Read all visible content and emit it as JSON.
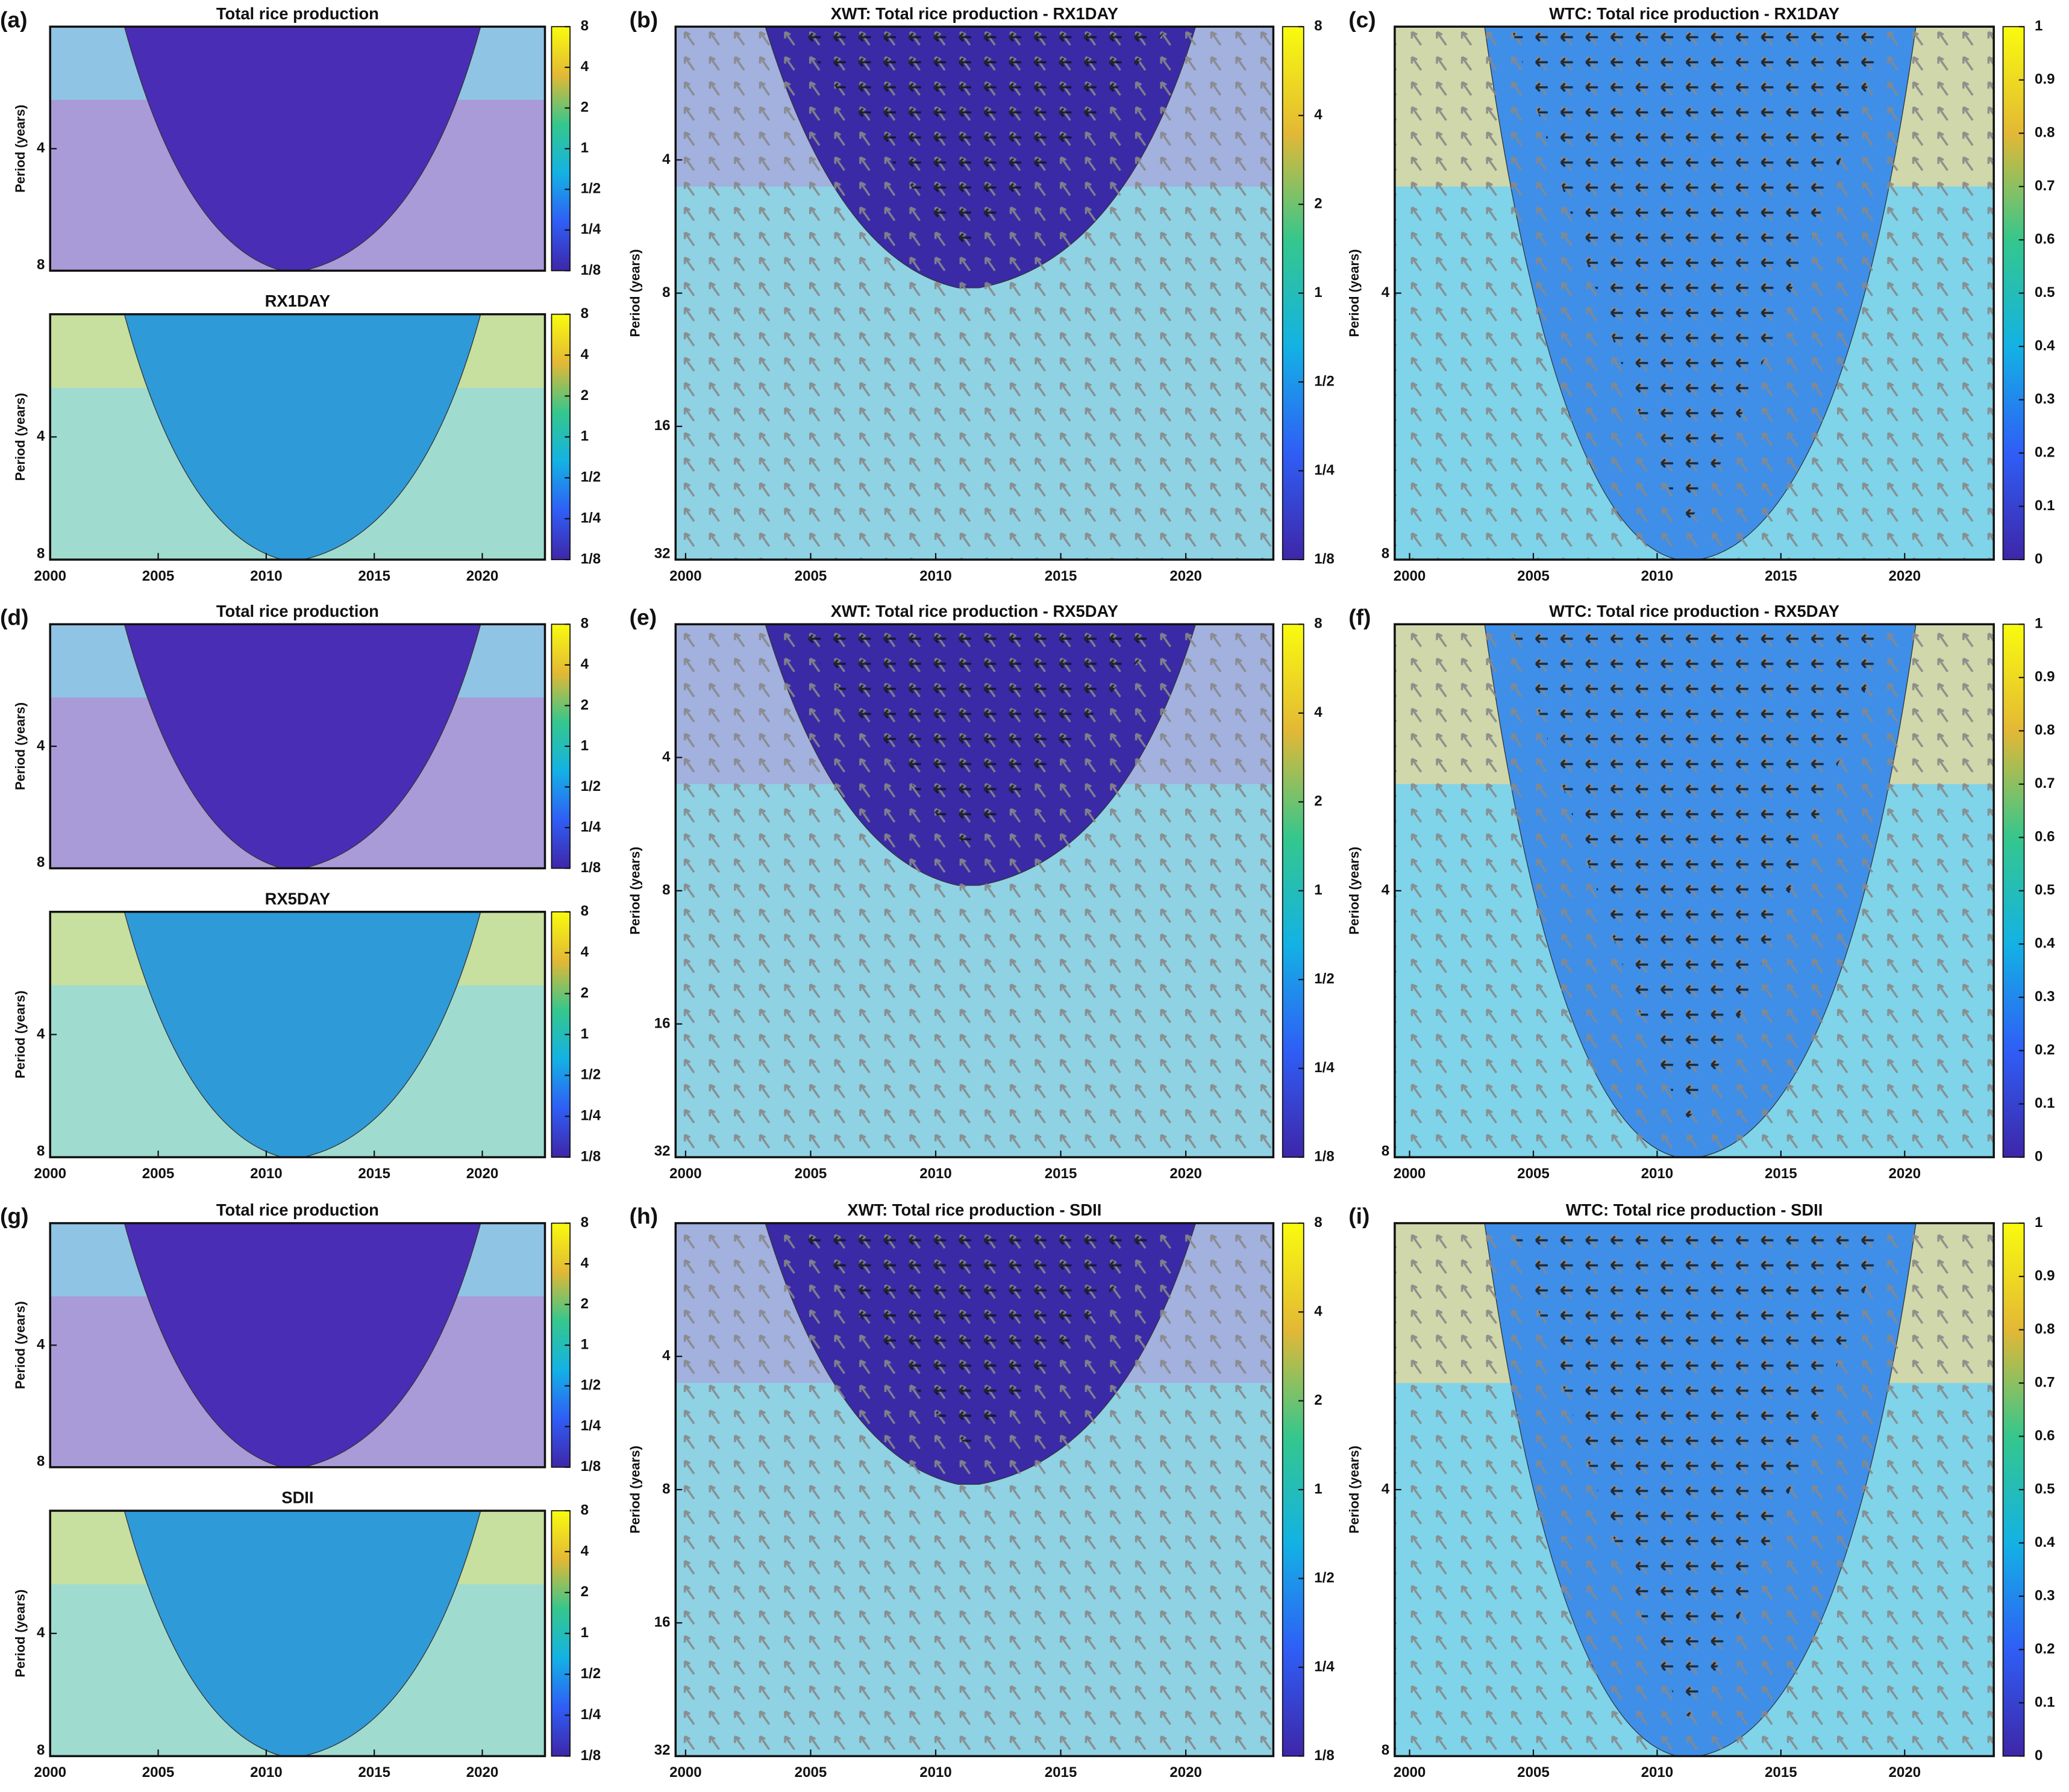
{
  "chart_data": [
    {
      "type": "heatmap",
      "panel_label": "(a)",
      "title": "Total rice production",
      "y_label": "Period (years)",
      "xlim": [
        2000,
        2022.9
      ],
      "ylim": [
        2,
        8
      ],
      "yticks": [
        4,
        8
      ],
      "log_scale": true,
      "colorbar_lim": [
        0.125,
        8
      ],
      "colorbar_log": true,
      "colorbar_ticks": [
        8,
        4,
        2,
        1,
        {
          "value": 0.5,
          "label": "1/2"
        },
        {
          "value": 0.25,
          "label": "1/4"
        },
        {
          "value": 0.125,
          "label": "1/8"
        }
      ]
    },
    {
      "type": "heatmap",
      "title": "RX1DAY",
      "y_label": "Period (years)",
      "xlim": [
        2000,
        2022.9
      ],
      "xticks": [
        2000,
        2005,
        2010,
        2015,
        2020
      ],
      "ylim": [
        2,
        8
      ],
      "yticks": [
        4,
        8
      ],
      "log_scale": true,
      "colorbar_lim": [
        0.125,
        8
      ],
      "colorbar_log": true,
      "colorbar_ticks": [
        8,
        4,
        2,
        1,
        {
          "value": 0.5,
          "label": "1/2"
        },
        {
          "value": 0.25,
          "label": "1/4"
        },
        {
          "value": 0.125,
          "label": "1/8"
        }
      ]
    },
    {
      "type": "xwt",
      "panel_label": "(b)",
      "title": "XWT: Total rice production - RX1DAY",
      "y_label": "Period (years)",
      "xlim": [
        1999.6,
        2023.5
      ],
      "xticks": [
        2000,
        2005,
        2010,
        2015,
        2020
      ],
      "ylim": [
        2,
        32
      ],
      "yticks": [
        4,
        8,
        16,
        32
      ],
      "log_scale": true,
      "colorbar_lim": [
        0.125,
        8
      ],
      "colorbar_log": true,
      "colorbar_ticks": [
        8,
        4,
        2,
        1,
        {
          "value": 0.5,
          "label": "1/2"
        },
        {
          "value": 0.25,
          "label": "1/4"
        },
        {
          "value": 0.125,
          "label": "1/8"
        }
      ]
    },
    {
      "type": "wtc",
      "panel_label": "(c)",
      "title": "WTC: Total rice production - RX1DAY",
      "y_label": "Period (years)",
      "xlim": [
        1999.4,
        2023.6
      ],
      "xticks": [
        2000,
        2005,
        2010,
        2015,
        2020
      ],
      "ylim": [
        2,
        8
      ],
      "yticks": [
        4,
        8
      ],
      "log_scale": true,
      "colorbar_lim": [
        0,
        1
      ],
      "colorbar_log": false,
      "colorbar_ticks": [
        0,
        0.1,
        0.2,
        0.3,
        0.4,
        0.5,
        0.6,
        0.7,
        0.8,
        0.9,
        1
      ]
    },
    {
      "type": "heatmap",
      "panel_label": "(d)",
      "title": "Total rice production",
      "y_label": "Period (years)",
      "xlim": [
        2000,
        2022.9
      ],
      "ylim": [
        2,
        8
      ],
      "yticks": [
        4,
        8
      ],
      "log_scale": true,
      "colorbar_lim": [
        0.125,
        8
      ],
      "colorbar_log": true,
      "colorbar_ticks": [
        8,
        4,
        2,
        1,
        {
          "value": 0.5,
          "label": "1/2"
        },
        {
          "value": 0.25,
          "label": "1/4"
        },
        {
          "value": 0.125,
          "label": "1/8"
        }
      ]
    },
    {
      "type": "heatmap",
      "title": "RX5DAY",
      "y_label": "Period (years)",
      "xlim": [
        2000,
        2022.9
      ],
      "xticks": [
        2000,
        2005,
        2010,
        2015,
        2020
      ],
      "ylim": [
        2,
        8
      ],
      "yticks": [
        4,
        8
      ],
      "log_scale": true,
      "colorbar_lim": [
        0.125,
        8
      ],
      "colorbar_log": true,
      "colorbar_ticks": [
        8,
        4,
        2,
        1,
        {
          "value": 0.5,
          "label": "1/2"
        },
        {
          "value": 0.25,
          "label": "1/4"
        },
        {
          "value": 0.125,
          "label": "1/8"
        }
      ]
    },
    {
      "type": "xwt",
      "panel_label": "(e)",
      "title": "XWT: Total rice production - RX5DAY",
      "y_label": "Period (years)",
      "xlim": [
        1999.6,
        2023.5
      ],
      "xticks": [
        2000,
        2005,
        2010,
        2015,
        2020
      ],
      "ylim": [
        2,
        32
      ],
      "yticks": [
        4,
        8,
        16,
        32
      ],
      "log_scale": true,
      "colorbar_lim": [
        0.125,
        8
      ],
      "colorbar_log": true,
      "colorbar_ticks": [
        8,
        4,
        2,
        1,
        {
          "value": 0.5,
          "label": "1/2"
        },
        {
          "value": 0.25,
          "label": "1/4"
        },
        {
          "value": 0.125,
          "label": "1/8"
        }
      ]
    },
    {
      "type": "wtc",
      "panel_label": "(f)",
      "title": "WTC: Total rice production - RX5DAY",
      "y_label": "Period (years)",
      "xlim": [
        1999.4,
        2023.6
      ],
      "xticks": [
        2000,
        2005,
        2010,
        2015,
        2020
      ],
      "ylim": [
        2,
        8
      ],
      "yticks": [
        4,
        8
      ],
      "log_scale": true,
      "colorbar_lim": [
        0,
        1
      ],
      "colorbar_log": false,
      "colorbar_ticks": [
        0,
        0.1,
        0.2,
        0.3,
        0.4,
        0.5,
        0.6,
        0.7,
        0.8,
        0.9,
        1
      ]
    },
    {
      "type": "heatmap",
      "panel_label": "(g)",
      "title": "Total rice production",
      "y_label": "Period (years)",
      "xlim": [
        2000,
        2022.9
      ],
      "ylim": [
        2,
        8
      ],
      "yticks": [
        4,
        8
      ],
      "log_scale": true,
      "colorbar_lim": [
        0.125,
        8
      ],
      "colorbar_log": true,
      "colorbar_ticks": [
        8,
        4,
        2,
        1,
        {
          "value": 0.5,
          "label": "1/2"
        },
        {
          "value": 0.25,
          "label": "1/4"
        },
        {
          "value": 0.125,
          "label": "1/8"
        }
      ]
    },
    {
      "type": "heatmap",
      "title": "SDII",
      "y_label": "Period (years)",
      "xlim": [
        2000,
        2022.9
      ],
      "xticks": [
        2000,
        2005,
        2010,
        2015,
        2020
      ],
      "ylim": [
        2,
        8
      ],
      "yticks": [
        4,
        8
      ],
      "log_scale": true,
      "colorbar_lim": [
        0.125,
        8
      ],
      "colorbar_log": true,
      "colorbar_ticks": [
        8,
        4,
        2,
        1,
        {
          "value": 0.5,
          "label": "1/2"
        },
        {
          "value": 0.25,
          "label": "1/4"
        },
        {
          "value": 0.125,
          "label": "1/8"
        }
      ]
    },
    {
      "type": "xwt",
      "panel_label": "(h)",
      "title": "XWT: Total rice production - SDII",
      "y_label": "Period (years)",
      "xlim": [
        1999.6,
        2023.5
      ],
      "xticks": [
        2000,
        2005,
        2010,
        2015,
        2020
      ],
      "ylim": [
        2,
        32
      ],
      "yticks": [
        4,
        8,
        16,
        32
      ],
      "log_scale": true,
      "colorbar_lim": [
        0.125,
        8
      ],
      "colorbar_log": true,
      "colorbar_ticks": [
        8,
        4,
        2,
        1,
        {
          "value": 0.5,
          "label": "1/2"
        },
        {
          "value": 0.25,
          "label": "1/4"
        },
        {
          "value": 0.125,
          "label": "1/8"
        }
      ]
    },
    {
      "type": "wtc",
      "panel_label": "(i)",
      "title": "WTC: Total rice production - SDII",
      "y_label": "Period (years)",
      "xlim": [
        1999.4,
        2023.6
      ],
      "xticks": [
        2000,
        2005,
        2010,
        2015,
        2020
      ],
      "ylim": [
        2,
        8
      ],
      "yticks": [
        4,
        8
      ],
      "log_scale": true,
      "colorbar_lim": [
        0,
        1
      ],
      "colorbar_log": false,
      "colorbar_ticks": [
        0,
        0.1,
        0.2,
        0.3,
        0.4,
        0.5,
        0.6,
        0.7,
        0.8,
        0.9,
        1
      ]
    }
  ]
}
